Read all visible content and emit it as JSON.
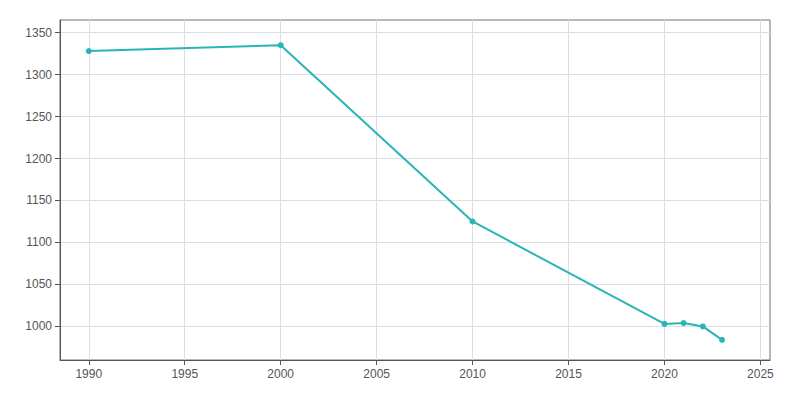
{
  "chart_data": {
    "type": "line",
    "x": [
      1990,
      2000,
      2010,
      2020,
      2021,
      2022,
      2023
    ],
    "values": [
      1328,
      1335,
      1125,
      1003,
      1004,
      1000,
      984
    ],
    "color": "#2ab5b5",
    "marker": "circle",
    "xlim": [
      1988.5,
      2025.5
    ],
    "ylim": [
      960,
      1365
    ],
    "xticks": [
      1990,
      1995,
      2000,
      2005,
      2010,
      2015,
      2020,
      2025
    ],
    "yticks": [
      1000,
      1050,
      1100,
      1150,
      1200,
      1250,
      1300,
      1350
    ],
    "grid": true
  }
}
